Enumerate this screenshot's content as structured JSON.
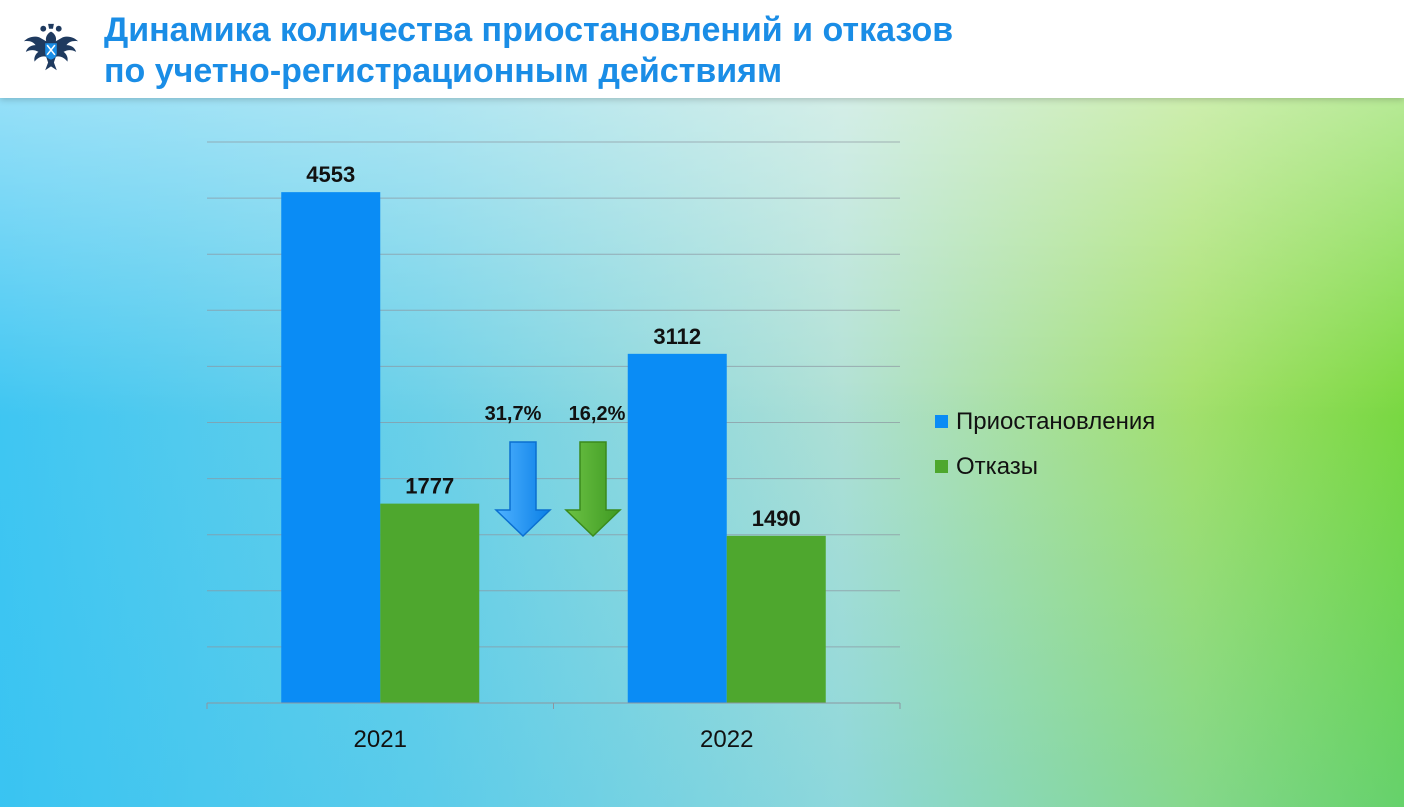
{
  "header": {
    "title_line1": "Динамика количества приостановлений и отказов",
    "title_line2": "по учетно-регистрационным действиям",
    "logo_icon": "double-headed-eagle-emblem-icon"
  },
  "colors": {
    "title": "#1a8de6",
    "suspensions": "#0a8cf5",
    "refusals": "#4ea72e"
  },
  "chart_data": {
    "type": "bar",
    "categories": [
      "2021",
      "2022"
    ],
    "series": [
      {
        "name": "Приостановления",
        "values": [
          4553,
          3112
        ],
        "color": "#0a8cf5"
      },
      {
        "name": "Отказы",
        "values": [
          1777,
          1490
        ],
        "color": "#4ea72e"
      }
    ],
    "data_labels": true,
    "ylim": [
      0,
      5000
    ],
    "grid": true,
    "legend": "right",
    "annotations": [
      {
        "text": "31,7%",
        "series": "Приостановления",
        "direction": "down"
      },
      {
        "text": "16,2%",
        "series": "Отказы",
        "direction": "down"
      }
    ]
  }
}
